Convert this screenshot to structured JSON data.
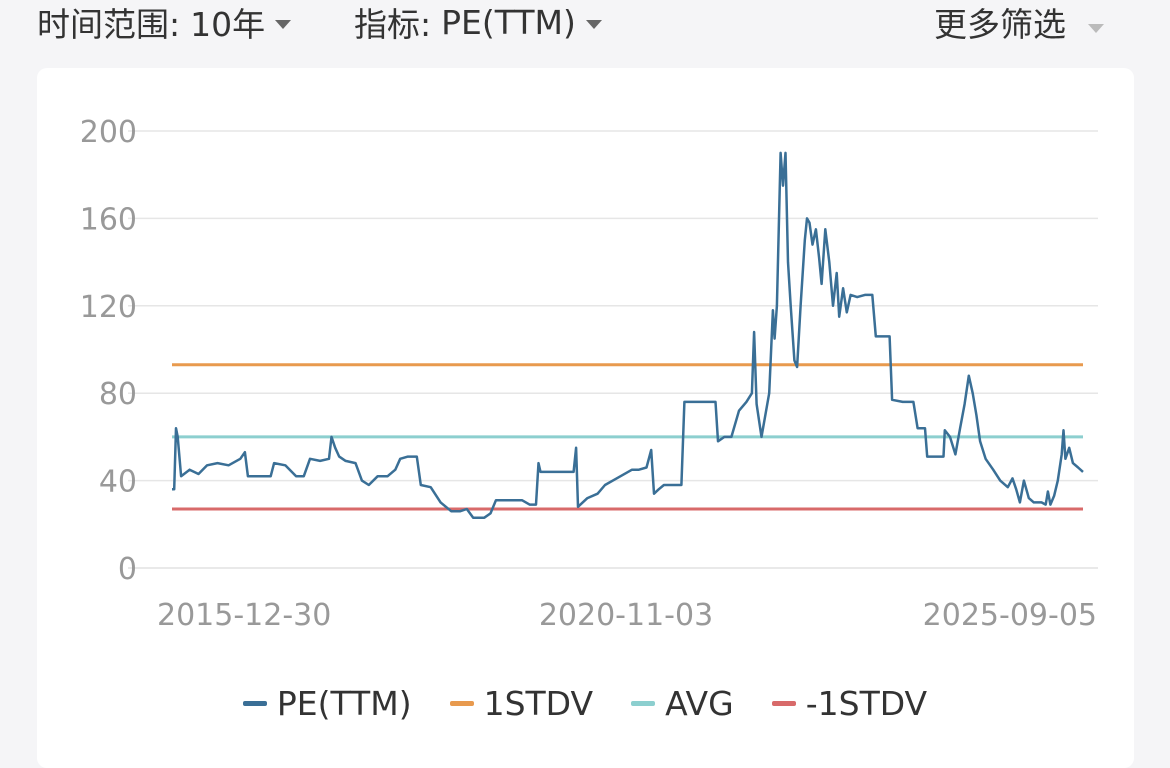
{
  "filters": {
    "range_label": "时间范围:",
    "range_value": "10年",
    "metric_label": "指标:",
    "metric_value": "PE(TTM)",
    "more_label": "更多筛选"
  },
  "legend": [
    "PE(TTM)",
    "1STDV",
    "AVG",
    "-1STDV"
  ],
  "colors": {
    "pe": "#3a6f96",
    "stdv_plus": "#e89a4e",
    "avg": "#8ccfcf",
    "stdv_minus": "#d86a6a"
  },
  "chart_data": {
    "type": "line",
    "ylim": [
      0,
      200
    ],
    "yticks": [
      0,
      40,
      80,
      120,
      160,
      200
    ],
    "xlim": [
      "2015-12-30",
      "2026-01-30"
    ],
    "xticks": [
      "2015-12-30",
      "2020-11-03",
      "2025-09-05"
    ],
    "grid": true,
    "legend_position": "bottom",
    "series": [
      {
        "name": "PE(TTM)",
        "color": "#3a6f96",
        "points": [
          [
            "2015-12-30",
            36
          ],
          [
            "2016-01-08",
            36
          ],
          [
            "2016-01-15",
            64
          ],
          [
            "2016-01-22",
            60
          ],
          [
            "2016-02-05",
            42
          ],
          [
            "2016-03-10",
            45
          ],
          [
            "2016-04-15",
            43
          ],
          [
            "2016-05-20",
            47
          ],
          [
            "2016-07-01",
            48
          ],
          [
            "2016-08-15",
            47
          ],
          [
            "2016-10-01",
            50
          ],
          [
            "2016-10-20",
            53
          ],
          [
            "2016-11-01",
            42
          ],
          [
            "2017-02-01",
            42
          ],
          [
            "2017-02-15",
            48
          ],
          [
            "2017-04-01",
            47
          ],
          [
            "2017-05-15",
            42
          ],
          [
            "2017-06-15",
            42
          ],
          [
            "2017-07-10",
            50
          ],
          [
            "2017-08-20",
            49
          ],
          [
            "2017-09-25",
            50
          ],
          [
            "2017-10-05",
            60
          ],
          [
            "2017-10-20",
            55
          ],
          [
            "2017-11-05",
            51
          ],
          [
            "2017-12-01",
            49
          ],
          [
            "2018-01-10",
            48
          ],
          [
            "2018-02-05",
            40
          ],
          [
            "2018-03-05",
            38
          ],
          [
            "2018-04-10",
            42
          ],
          [
            "2018-05-20",
            42
          ],
          [
            "2018-06-20",
            45
          ],
          [
            "2018-07-10",
            50
          ],
          [
            "2018-08-10",
            51
          ],
          [
            "2018-09-15",
            51
          ],
          [
            "2018-10-01",
            38
          ],
          [
            "2018-11-10",
            37
          ],
          [
            "2018-12-20",
            30
          ],
          [
            "2019-02-01",
            26
          ],
          [
            "2019-03-10",
            26
          ],
          [
            "2019-04-05",
            27
          ],
          [
            "2019-05-01",
            23
          ],
          [
            "2019-06-15",
            23
          ],
          [
            "2019-07-10",
            25
          ],
          [
            "2019-08-01",
            31
          ],
          [
            "2019-10-01",
            31
          ],
          [
            "2019-11-15",
            31
          ],
          [
            "2019-12-15",
            29
          ],
          [
            "2020-01-10",
            29
          ],
          [
            "2020-01-20",
            48
          ],
          [
            "2020-01-28",
            44
          ],
          [
            "2020-03-01",
            44
          ],
          [
            "2020-06-10",
            44
          ],
          [
            "2020-06-20",
            55
          ],
          [
            "2020-06-28",
            28
          ],
          [
            "2020-08-05",
            32
          ],
          [
            "2020-09-15",
            34
          ],
          [
            "2020-10-15",
            38
          ],
          [
            "2020-12-01",
            41
          ],
          [
            "2021-02-01",
            45
          ],
          [
            "2021-03-01",
            45
          ],
          [
            "2021-04-01",
            46
          ],
          [
            "2021-04-20",
            54
          ],
          [
            "2021-05-01",
            34
          ],
          [
            "2021-05-20",
            36
          ],
          [
            "2021-06-10",
            38
          ],
          [
            "2021-07-15",
            38
          ],
          [
            "2021-08-20",
            38
          ],
          [
            "2021-09-01",
            76
          ],
          [
            "2021-10-15",
            76
          ],
          [
            "2021-12-01",
            76
          ],
          [
            "2022-01-05",
            76
          ],
          [
            "2022-01-15",
            58
          ],
          [
            "2022-02-10",
            60
          ],
          [
            "2022-03-10",
            60
          ],
          [
            "2022-04-10",
            72
          ],
          [
            "2022-05-10",
            76
          ],
          [
            "2022-06-01",
            80
          ],
          [
            "2022-06-10",
            108
          ],
          [
            "2022-06-20",
            75
          ],
          [
            "2022-07-10",
            60
          ],
          [
            "2022-08-10",
            80
          ],
          [
            "2022-08-25",
            118
          ],
          [
            "2022-09-01",
            105
          ],
          [
            "2022-09-10",
            120
          ],
          [
            "2022-09-25",
            190
          ],
          [
            "2022-10-05",
            175
          ],
          [
            "2022-10-15",
            190
          ],
          [
            "2022-10-25",
            140
          ],
          [
            "2022-11-05",
            120
          ],
          [
            "2022-11-20",
            95
          ],
          [
            "2022-12-01",
            92
          ],
          [
            "2022-12-15",
            120
          ],
          [
            "2023-01-01",
            150
          ],
          [
            "2023-01-10",
            160
          ],
          [
            "2023-01-20",
            158
          ],
          [
            "2023-02-01",
            148
          ],
          [
            "2023-02-15",
            155
          ],
          [
            "2023-02-28",
            142
          ],
          [
            "2023-03-10",
            130
          ],
          [
            "2023-03-25",
            155
          ],
          [
            "2023-04-10",
            140
          ],
          [
            "2023-04-25",
            120
          ],
          [
            "2023-05-10",
            135
          ],
          [
            "2023-05-20",
            115
          ],
          [
            "2023-06-05",
            128
          ],
          [
            "2023-06-20",
            117
          ],
          [
            "2023-07-05",
            125
          ],
          [
            "2023-08-01",
            124
          ],
          [
            "2023-09-01",
            125
          ],
          [
            "2023-10-01",
            125
          ],
          [
            "2023-10-15",
            106
          ],
          [
            "2023-11-15",
            106
          ],
          [
            "2023-12-10",
            106
          ],
          [
            "2023-12-20",
            77
          ],
          [
            "2024-02-01",
            76
          ],
          [
            "2024-03-15",
            76
          ],
          [
            "2024-04-01",
            64
          ],
          [
            "2024-05-01",
            64
          ],
          [
            "2024-05-10",
            51
          ],
          [
            "2024-06-15",
            51
          ],
          [
            "2024-07-15",
            51
          ],
          [
            "2024-07-20",
            63
          ],
          [
            "2024-08-10",
            60
          ],
          [
            "2024-09-01",
            52
          ],
          [
            "2024-09-20",
            64
          ],
          [
            "2024-10-08",
            75
          ],
          [
            "2024-10-25",
            88
          ],
          [
            "2024-11-10",
            80
          ],
          [
            "2024-11-25",
            70
          ],
          [
            "2024-12-10",
            58
          ],
          [
            "2025-01-01",
            50
          ],
          [
            "2025-02-01",
            45
          ],
          [
            "2025-03-01",
            40
          ],
          [
            "2025-04-01",
            37
          ],
          [
            "2025-04-20",
            41
          ],
          [
            "2025-05-05",
            36
          ],
          [
            "2025-05-20",
            30
          ],
          [
            "2025-06-05",
            40
          ],
          [
            "2025-06-25",
            32
          ],
          [
            "2025-07-15",
            30
          ],
          [
            "2025-08-15",
            30
          ],
          [
            "2025-09-01",
            29
          ],
          [
            "2025-09-10",
            35
          ],
          [
            "2025-09-20",
            29
          ],
          [
            "2025-10-05",
            33
          ],
          [
            "2025-10-20",
            40
          ],
          [
            "2025-11-05",
            52
          ],
          [
            "2025-11-12",
            63
          ],
          [
            "2025-11-20",
            50
          ],
          [
            "2025-12-05",
            55
          ],
          [
            "2025-12-20",
            48
          ],
          [
            "2026-01-10",
            46
          ],
          [
            "2026-01-30",
            44
          ]
        ]
      },
      {
        "name": "1STDV",
        "color": "#e89a4e",
        "constant": 93
      },
      {
        "name": "AVG",
        "color": "#8ccfcf",
        "constant": 60
      },
      {
        "name": "-1STDV",
        "color": "#d86a6a",
        "constant": 27
      }
    ]
  }
}
